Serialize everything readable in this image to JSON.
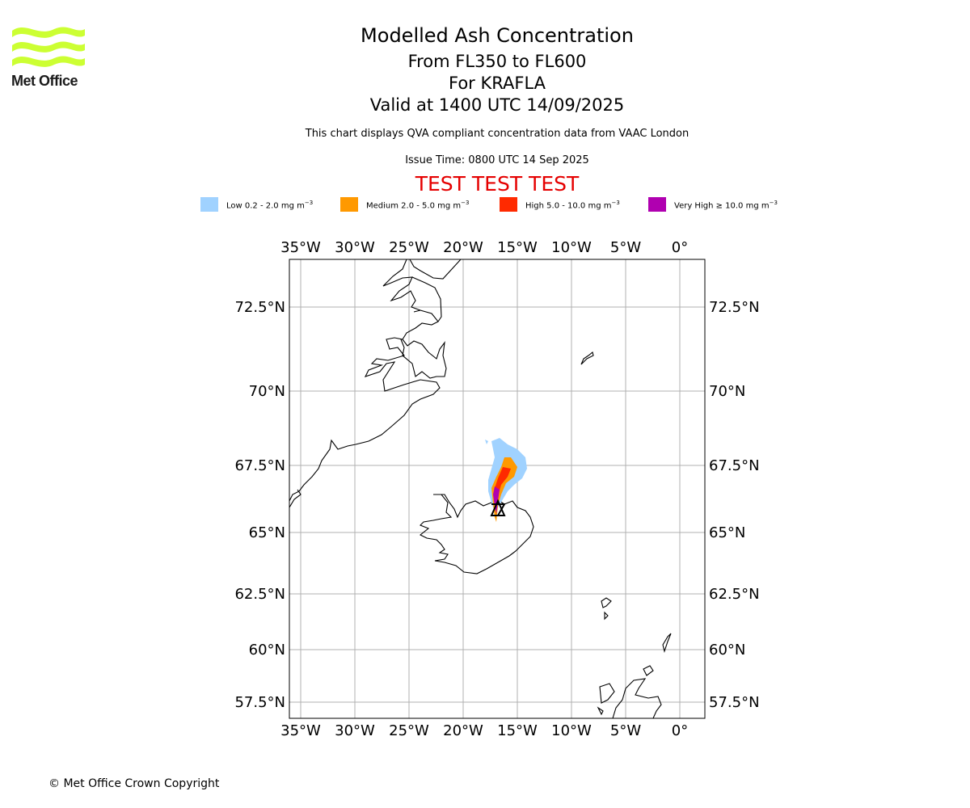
{
  "logo": {
    "text": "Met Office",
    "color": "#ccff33"
  },
  "header": {
    "title": "Modelled Ash Concentration",
    "line2": "From FL350 to FL600",
    "line3": "For KRAFLA",
    "line4": "Valid at 1400 UTC 14/09/2025",
    "note": "This chart displays QVA compliant concentration data from VAAC London",
    "issue": "Issue Time: 0800 UTC 14 Sep 2025",
    "test_banner": "TEST TEST TEST"
  },
  "legend": [
    {
      "label": "Low 0.2 - 2.0 mg m",
      "color": "#a0d2ff"
    },
    {
      "label": "Medium 2.0 - 5.0 mg m",
      "color": "#ff9900"
    },
    {
      "label": "High 5.0 - 10.0 mg m",
      "color": "#ff2a00"
    },
    {
      "label": "Very High ≥ 10.0 mg m",
      "color": "#b000b0"
    }
  ],
  "legend_unit_exp": "−3",
  "map": {
    "lon_ticks": [
      "35°W",
      "30°W",
      "25°W",
      "20°W",
      "15°W",
      "10°W",
      "5°W",
      "0°"
    ],
    "lat_ticks": [
      "72.5°N",
      "70°N",
      "67.5°N",
      "65°N",
      "62.5°N",
      "60°N",
      "57.5°N"
    ],
    "volcano": "KRAFLA"
  },
  "footer": {
    "copyright": "© Met Office Crown Copyright"
  }
}
